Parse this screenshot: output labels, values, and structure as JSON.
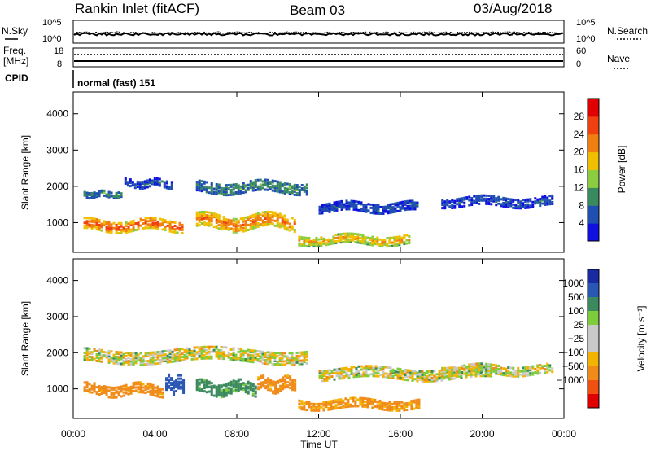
{
  "header": {
    "station": "Rankin Inlet (fitACF)",
    "beam": "Beam 03",
    "date": "03/Aug/2018"
  },
  "status_panels": {
    "nsky_label": "N.Sky",
    "nsearch_label": "N.Search",
    "nsky_ticks": [
      "10^5",
      "10^0"
    ],
    "nsearch_ticks": [
      "10^5",
      "10^0"
    ],
    "freq_label_1": "Freq.",
    "freq_label_2": "[MHz]",
    "freq_ticks": [
      "18",
      "8"
    ],
    "nave_label": "Nave",
    "nave_ticks": [
      "60",
      "0"
    ],
    "cpid_label": "CPID",
    "cpid_text": "normal (fast) 151"
  },
  "colors": {
    "power_scale": [
      "#1010e0",
      "#1f4fb0",
      "#3a8a60",
      "#8ccc40",
      "#f0c000",
      "#f07f10",
      "#f04010",
      "#e00000"
    ],
    "velocity_scale": [
      "#e00000",
      "#f05010",
      "#f08a18",
      "#f2b400",
      "#c8c8c8",
      "#c8c8c8",
      "#7ccc3c",
      "#3a8a5e",
      "#2a56b4",
      "#1a2aa0"
    ]
  },
  "chart_data": [
    {
      "type": "heatmap",
      "quantity": "power",
      "ylabel": "Slant Range [km]",
      "xlabel": "Time UT",
      "x_ticks": [
        "00:00",
        "04:00",
        "08:00",
        "12:00",
        "16:00",
        "20:00",
        "00:00"
      ],
      "y_ticks": [
        1000,
        2000,
        3000,
        4000
      ],
      "ylim": [
        180,
        4600
      ],
      "xlim": [
        0,
        24
      ],
      "colorbar": {
        "label": "Power [dB]",
        "ticks": [
          4,
          8,
          12,
          16,
          20,
          24,
          28
        ],
        "range": [
          0,
          32
        ]
      },
      "echo_regions": [
        {
          "t_start": 0.5,
          "t_end": 5.5,
          "range_center": 900,
          "range_width": 300,
          "value": 26
        },
        {
          "t_start": 0.5,
          "t_end": 2.5,
          "range_center": 1750,
          "range_width": 150,
          "value": 10
        },
        {
          "t_start": 2.5,
          "t_end": 5.0,
          "range_center": 2050,
          "range_width": 200,
          "value": 6
        },
        {
          "t_start": 6.0,
          "t_end": 11.0,
          "range_center": 1000,
          "range_width": 400,
          "value": 24
        },
        {
          "t_start": 6.0,
          "t_end": 11.5,
          "range_center": 1950,
          "range_width": 300,
          "value": 10
        },
        {
          "t_start": 11.0,
          "t_end": 16.5,
          "range_center": 500,
          "range_width": 250,
          "value": 20
        },
        {
          "t_start": 12.0,
          "t_end": 17.0,
          "range_center": 1400,
          "range_width": 250,
          "value": 6
        },
        {
          "t_start": 18.0,
          "t_end": 23.5,
          "range_center": 1550,
          "range_width": 250,
          "value": 6
        }
      ]
    },
    {
      "type": "heatmap",
      "quantity": "velocity",
      "ylabel": "Slant Range [km]",
      "xlabel": "Time UT",
      "x_ticks": [
        "00:00",
        "04:00",
        "08:00",
        "12:00",
        "16:00",
        "20:00",
        "00:00"
      ],
      "y_ticks": [
        1000,
        2000,
        3000,
        4000
      ],
      "ylim": [
        180,
        4600
      ],
      "xlim": [
        0,
        24
      ],
      "colorbar": {
        "label": "Velocity [m s⁻¹]",
        "ticks": [
          "1000",
          "500",
          "100",
          "25",
          "−25",
          "−100",
          "−500",
          "−1000"
        ]
      },
      "echo_regions": [
        {
          "t_start": 0.5,
          "t_end": 4.5,
          "range_center": 950,
          "range_width": 300,
          "value": -200
        },
        {
          "t_start": 4.5,
          "t_end": 5.5,
          "range_center": 1100,
          "range_width": 400,
          "value": 700
        },
        {
          "t_start": 6.0,
          "t_end": 9.0,
          "range_center": 1000,
          "range_width": 350,
          "value": 200
        },
        {
          "t_start": 9.0,
          "t_end": 11.0,
          "range_center": 1100,
          "range_width": 350,
          "value": -200
        },
        {
          "t_start": 0.5,
          "t_end": 11.5,
          "range_center": 1900,
          "range_width": 350,
          "value": 0
        },
        {
          "t_start": 11.0,
          "t_end": 17.0,
          "range_center": 550,
          "range_width": 250,
          "value": -150
        },
        {
          "t_start": 12.0,
          "t_end": 20.5,
          "range_center": 1400,
          "range_width": 300,
          "value": 0
        },
        {
          "t_start": 18.0,
          "t_end": 23.5,
          "range_center": 1500,
          "range_width": 250,
          "value": 0
        }
      ]
    }
  ]
}
